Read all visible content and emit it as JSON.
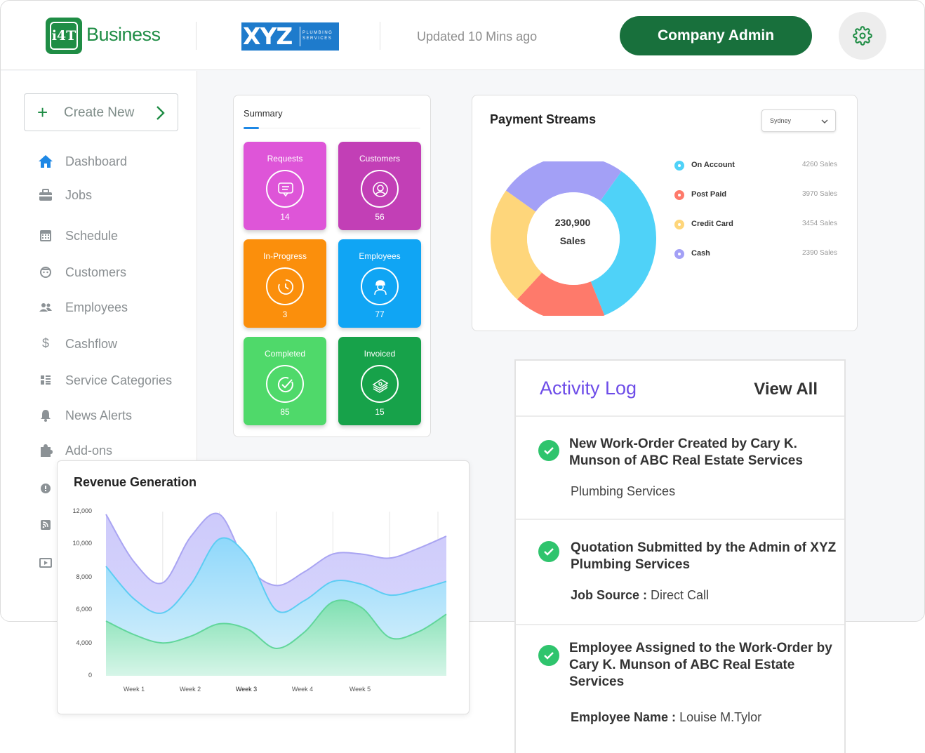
{
  "header": {
    "logo_mark": "i4T",
    "brand": "Business",
    "partner_logo_main": "XYZ",
    "partner_logo_sub": "PLUMBING SERVICES",
    "updated": "Updated 10 Mins ago",
    "admin_button": "Company Admin",
    "settings_icon": "gear-icon"
  },
  "sidebar": {
    "create_new": "Create New",
    "items": [
      {
        "label": "Dashboard",
        "icon": "home-icon"
      },
      {
        "label": "Jobs",
        "icon": "briefcase-icon"
      },
      {
        "label": "Schedule",
        "icon": "calendar-icon"
      },
      {
        "label": "Customers",
        "icon": "face-icon"
      },
      {
        "label": "Employees",
        "icon": "people-icon"
      },
      {
        "label": "Cashflow",
        "icon": "dollar-icon"
      },
      {
        "label": "Service Categories",
        "icon": "list-icon"
      },
      {
        "label": "News Alerts",
        "icon": "bell-icon"
      },
      {
        "label": "Add-ons",
        "icon": "puzzle-icon"
      },
      {
        "label": "",
        "icon": "alert-icon"
      },
      {
        "label": "",
        "icon": "rss-icon"
      },
      {
        "label": "",
        "icon": "video-icon"
      }
    ]
  },
  "summary": {
    "title": "Summary",
    "tiles": [
      {
        "label": "Requests",
        "value": "14",
        "color": "#de55d8",
        "icon": "chat-icon"
      },
      {
        "label": "Customers",
        "value": "56",
        "color": "#c23fb6",
        "icon": "user-icon"
      },
      {
        "label": "In-Progress",
        "value": "3",
        "color": "#fb8f0c",
        "icon": "clock-icon"
      },
      {
        "label": "Employees",
        "value": "77",
        "color": "#10a5f4",
        "icon": "worker-icon"
      },
      {
        "label": "Completed",
        "value": "85",
        "color": "#4fd96a",
        "icon": "check-icon"
      },
      {
        "label": "Invoiced",
        "value": "15",
        "color": "#17a24a",
        "icon": "money-icon"
      }
    ]
  },
  "payment_streams": {
    "title": "Payment Streams",
    "location": "Sydney",
    "center_value": "230,900",
    "center_label": "Sales",
    "legend": [
      {
        "name": "On Account",
        "value": "4260 Sales",
        "color": "#4fd2f8"
      },
      {
        "name": "Post Paid",
        "value": "3970 Sales",
        "color": "#fe7a6b"
      },
      {
        "name": "Credit Card",
        "value": "3454 Sales",
        "color": "#fed67b"
      },
      {
        "name": "Cash",
        "value": "2390 Sales",
        "color": "#a3a0f6"
      }
    ]
  },
  "chart_data": [
    {
      "type": "pie",
      "title": "Payment Streams",
      "categories": [
        "On Account",
        "Post Paid",
        "Credit Card",
        "Cash"
      ],
      "values": [
        34,
        18,
        23,
        25
      ],
      "colors": [
        "#4fd2f8",
        "#fe7a6b",
        "#fed67b",
        "#a3a0f6"
      ],
      "donut": true,
      "legend_position": "right"
    },
    {
      "type": "area",
      "title": "Revenue Generation",
      "x": [
        0,
        0.5,
        1,
        1.5,
        2,
        2.5,
        3,
        3.5,
        4,
        4.5,
        5,
        5.5,
        6
      ],
      "x_ticks": [
        "Week 1",
        "Week 2",
        "Week 3",
        "Week 4",
        "Week 5"
      ],
      "y_ticks": [
        "12,000",
        "10,000",
        "8,000",
        "6,000",
        "4,000",
        "0"
      ],
      "ylim": [
        0,
        12000
      ],
      "grid": "vertical",
      "series": [
        {
          "values": [
            11800,
            8300,
            6800,
            10200,
            11800,
            8000,
            6600,
            7600,
            8900,
            8900,
            8600,
            9300,
            10200
          ],
          "color": "#a9a4f2"
        },
        {
          "values": [
            8000,
            5600,
            4600,
            6700,
            10000,
            8700,
            4800,
            5500,
            6900,
            6700,
            5900,
            6300,
            6900
          ],
          "color": "#5ccdf3"
        },
        {
          "values": [
            4000,
            3000,
            2400,
            2900,
            3800,
            3400,
            2000,
            3200,
            5400,
            5000,
            2800,
            3200,
            4500
          ],
          "color": "#61d69b"
        }
      ]
    }
  ],
  "revenue": {
    "title": "Revenue Generation",
    "y_ticks": [
      "12,000",
      "10,000",
      "8,000",
      "6,000",
      "4,000",
      "0"
    ],
    "x_ticks": [
      "Week 1",
      "Week 2",
      "Week 3",
      "Week 4",
      "Week 5"
    ]
  },
  "activity_log": {
    "title": "Activity Log",
    "view_all": "View All",
    "items": [
      {
        "head": "New Work-Order Created by Cary K. Munson of ABC Real Estate Services",
        "sub_label": "",
        "sub_value": "Plumbing Services"
      },
      {
        "head": "Quotation Submitted by the Admin of XYZ Plumbing Services",
        "sub_label": "Job Source :",
        "sub_value": " Direct Call"
      },
      {
        "head": "Employee Assigned to the Work-Order by Cary K. Munson of ABC Real Estate Services",
        "sub_label": "Employee Name :",
        "sub_value": " Louise M.Tylor"
      }
    ]
  }
}
